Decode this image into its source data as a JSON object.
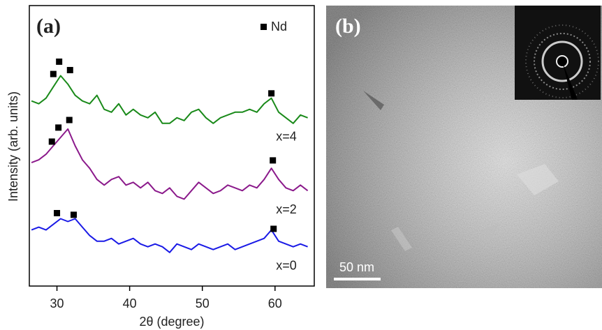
{
  "chart_data": {
    "type": "line",
    "title": "(a)",
    "xlabel": "2θ (degree)",
    "ylabel": "Intensity (arb. units)",
    "x": [
      26.5,
      27.5,
      28.5,
      29.5,
      30.5,
      31.5,
      32.5,
      33.5,
      34.5,
      35.5,
      36.5,
      37.5,
      38.5,
      39.5,
      40.5,
      41.5,
      42.5,
      43.5,
      44.5,
      45.5,
      46.5,
      47.5,
      48.5,
      49.5,
      50.5,
      51.5,
      52.5,
      53.5,
      54.5,
      55.5,
      56.5,
      57.5,
      58.5,
      59.5,
      60.5,
      61.5,
      62.5,
      63.5,
      64.5
    ],
    "series": [
      {
        "name": "x=4",
        "color": "#1a8a1a",
        "values": [
          66,
          65,
          67,
          71,
          75,
          72,
          68,
          66,
          65,
          68,
          63,
          62,
          65,
          61,
          63,
          61,
          60,
          62,
          58,
          58,
          60,
          59,
          62,
          63,
          60,
          58,
          60,
          61,
          62,
          62,
          63,
          62,
          65,
          67,
          62,
          60,
          58,
          61,
          60
        ]
      },
      {
        "name": "x=2",
        "color": "#8b1a8b",
        "values": [
          44,
          45,
          47,
          50,
          53,
          56,
          50,
          45,
          42,
          38,
          36,
          38,
          39,
          36,
          37,
          35,
          37,
          34,
          33,
          35,
          32,
          31,
          34,
          37,
          35,
          33,
          34,
          36,
          35,
          34,
          36,
          35,
          38,
          42,
          38,
          35,
          34,
          36,
          34
        ]
      },
      {
        "name": "x=0",
        "color": "#1a1ae6",
        "values": [
          20,
          21,
          20,
          22,
          24,
          23,
          24,
          21,
          18,
          16,
          16,
          17,
          15,
          16,
          17,
          15,
          14,
          15,
          14,
          12,
          15,
          14,
          13,
          15,
          14,
          13,
          14,
          15,
          13,
          14,
          15,
          16,
          17,
          20,
          16,
          15,
          14,
          15,
          14
        ]
      }
    ],
    "nd_markers": [
      {
        "x": 29.5,
        "y": 75.6
      },
      {
        "x": 30.3,
        "y": 80
      },
      {
        "x": 31.8,
        "y": 77
      },
      {
        "x": 59.5,
        "y": 68.7
      },
      {
        "x": 29.3,
        "y": 51.5
      },
      {
        "x": 30.2,
        "y": 56.5
      },
      {
        "x": 31.7,
        "y": 59.2
      },
      {
        "x": 59.7,
        "y": 44.8
      },
      {
        "x": 30.0,
        "y": 26
      },
      {
        "x": 32.3,
        "y": 25.4
      },
      {
        "x": 59.8,
        "y": 20.4
      }
    ],
    "legend": "Nd",
    "legend_position": "upper right",
    "xlim": [
      26.2,
      65.4
    ],
    "xticks": [
      30,
      40,
      50,
      60
    ],
    "ylim": [
      0,
      100
    ],
    "grid": false
  },
  "image_panel": {
    "label": "(b)",
    "scale_bar": "50 nm"
  }
}
